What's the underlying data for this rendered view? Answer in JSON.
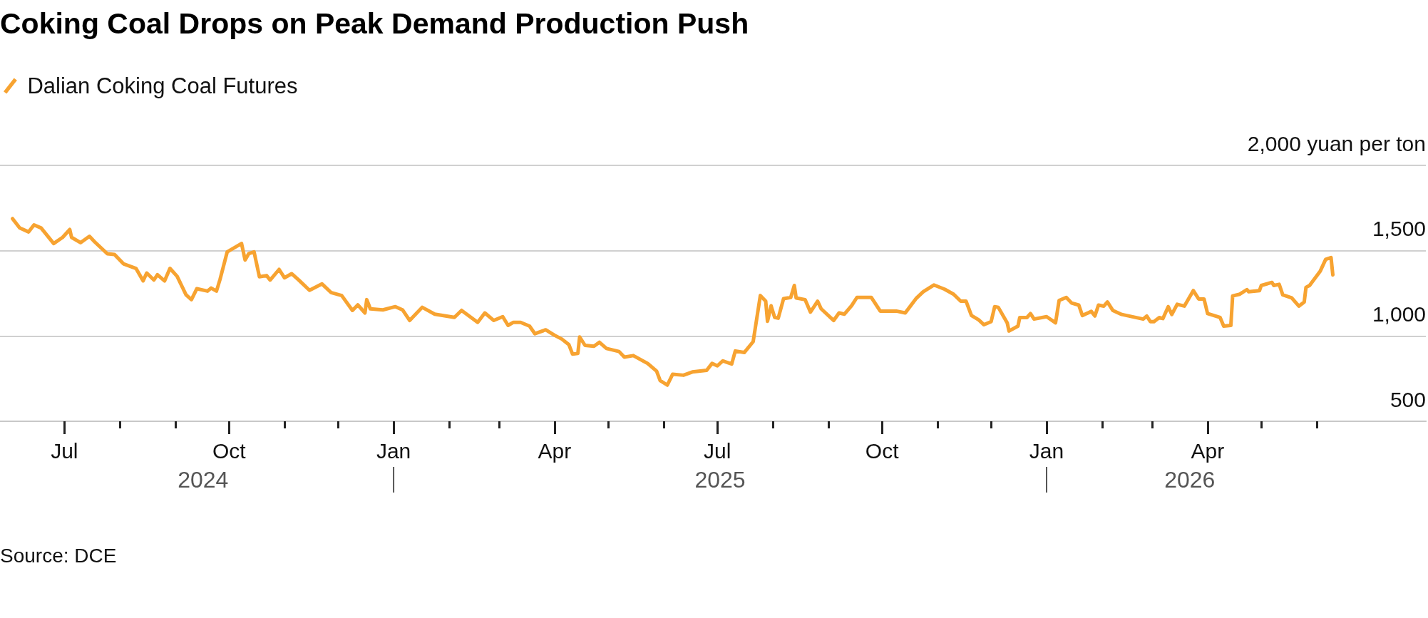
{
  "chart_data": {
    "type": "line",
    "title": "Coking Coal Drops on Peak Demand Production Push",
    "annotations": [
      "Source: DCE",
      "2024",
      "2025",
      "2026"
    ],
    "xlim": [
      "2024-05-26",
      "2026-08-01"
    ],
    "xticks": [
      {
        "value": "2024-07-01",
        "label": "Jul"
      },
      {
        "value": "2024-08-01",
        "label": null
      },
      {
        "value": "2024-09-01",
        "label": null
      },
      {
        "value": "2024-10-01",
        "label": "Oct"
      },
      {
        "value": "2024-11-01",
        "label": null
      },
      {
        "value": "2024-12-01",
        "label": null
      },
      {
        "value": "2025-01-01",
        "label": "Jan"
      },
      {
        "value": "2025-02-01",
        "label": null
      },
      {
        "value": "2025-03-01",
        "label": null
      },
      {
        "value": "2025-04-01",
        "label": "Apr"
      },
      {
        "value": "2025-05-01",
        "label": null
      },
      {
        "value": "2025-06-01",
        "label": null
      },
      {
        "value": "2025-07-01",
        "label": "Jul"
      },
      {
        "value": "2025-08-01",
        "label": null
      },
      {
        "value": "2025-09-01",
        "label": null
      },
      {
        "value": "2025-10-01",
        "label": "Oct"
      },
      {
        "value": "2025-11-01",
        "label": null
      },
      {
        "value": "2025-12-01",
        "label": null
      },
      {
        "value": "2026-01-01",
        "label": "Jan"
      },
      {
        "value": "2026-02-01",
        "label": null
      },
      {
        "value": "2026-03-01",
        "label": null
      },
      {
        "value": "2026-04-01",
        "label": "Apr"
      },
      {
        "value": "2026-05-01",
        "label": null
      },
      {
        "value": "2026-06-01",
        "label": null
      }
    ],
    "ylim": [
      500,
      2000
    ],
    "yticks": [
      500,
      {
        "value": 1000,
        "label": "1,000"
      },
      {
        "value": 1500,
        "label": "1,500"
      },
      {
        "value": 2000,
        "label": "2,000 yuan per ton"
      }
    ],
    "grid": "y",
    "legend": "top left",
    "marker": "none",
    "line_style": "solid",
    "series": [
      {
        "name": "Dalian Coking Coal Futures",
        "color": "#f7a331",
        "x": [
          "2024-06-02",
          "2024-06-06",
          "2024-06-11",
          "2024-06-14",
          "2024-06-18",
          "2024-06-25",
          "2024-06-30",
          "2024-07-04",
          "2024-07-05",
          "2024-07-10",
          "2024-07-15",
          "2024-07-18",
          "2024-07-25",
          "2024-07-29",
          "2024-08-03",
          "2024-08-10",
          "2024-08-14",
          "2024-08-16",
          "2024-08-20",
          "2024-08-22",
          "2024-08-26",
          "2024-08-29",
          "2024-09-02",
          "2024-09-07",
          "2024-09-10",
          "2024-09-13",
          "2024-09-19",
          "2024-09-21",
          "2024-09-24",
          "2024-09-26",
          "2024-09-30",
          "2024-10-08",
          "2024-10-10",
          "2024-10-12",
          "2024-10-15",
          "2024-10-18",
          "2024-10-22",
          "2024-10-24",
          "2024-10-29",
          "2024-11-01",
          "2024-11-05",
          "2024-11-09",
          "2024-11-15",
          "2024-11-22",
          "2024-11-27",
          "2024-12-03",
          "2024-12-09",
          "2024-12-12",
          "2024-12-16",
          "2024-12-17",
          "2024-12-19",
          "2024-12-26",
          "2025-01-02",
          "2025-01-06",
          "2025-01-10",
          "2025-01-17",
          "2025-01-24",
          "2025-02-04",
          "2025-02-08",
          "2025-02-17",
          "2025-02-21",
          "2025-02-26",
          "2025-03-03",
          "2025-03-06",
          "2025-03-09",
          "2025-03-13",
          "2025-03-18",
          "2025-03-21",
          "2025-03-27",
          "2025-04-01",
          "2025-04-05",
          "2025-04-09",
          "2025-04-11",
          "2025-04-14",
          "2025-04-15",
          "2025-04-18",
          "2025-04-23",
          "2025-04-26",
          "2025-04-30",
          "2025-05-07",
          "2025-05-10",
          "2025-05-15",
          "2025-05-23",
          "2025-05-28",
          "2025-05-30",
          "2025-06-03",
          "2025-06-06",
          "2025-06-12",
          "2025-06-17",
          "2025-06-25",
          "2025-06-28",
          "2025-07-01",
          "2025-07-04",
          "2025-07-09",
          "2025-07-11",
          "2025-07-16",
          "2025-07-21",
          "2025-07-25",
          "2025-07-28",
          "2025-07-29",
          "2025-07-31",
          "2025-08-02",
          "2025-08-04",
          "2025-08-07",
          "2025-08-11",
          "2025-08-13",
          "2025-08-14",
          "2025-08-19",
          "2025-08-22",
          "2025-08-26",
          "2025-08-28",
          "2025-09-04",
          "2025-09-07",
          "2025-09-10",
          "2025-09-14",
          "2025-09-17",
          "2025-09-25",
          "2025-09-30",
          "2025-10-09",
          "2025-10-14",
          "2025-10-20",
          "2025-10-24",
          "2025-10-30",
          "2025-11-05",
          "2025-11-10",
          "2025-11-14",
          "2025-11-17",
          "2025-11-20",
          "2025-11-24",
          "2025-11-27",
          "2025-12-01",
          "2025-12-03",
          "2025-12-05",
          "2025-12-10",
          "2025-12-11",
          "2025-12-16",
          "2025-12-17",
          "2025-12-21",
          "2025-12-23",
          "2025-12-25",
          "2026-01-01",
          "2026-01-06",
          "2026-01-08",
          "2026-01-12",
          "2026-01-15",
          "2026-01-19",
          "2026-01-21",
          "2026-01-26",
          "2026-01-28",
          "2026-01-30",
          "2026-02-02",
          "2026-02-04",
          "2026-02-07",
          "2026-02-12",
          "2026-02-24",
          "2026-02-26",
          "2026-02-28",
          "2026-03-02",
          "2026-03-05",
          "2026-03-07",
          "2026-03-10",
          "2026-03-12",
          "2026-03-15",
          "2026-03-19",
          "2026-03-24",
          "2026-03-27",
          "2026-03-30",
          "2026-04-01",
          "2026-04-08",
          "2026-04-10",
          "2026-04-14",
          "2026-04-15",
          "2026-04-19",
          "2026-04-23",
          "2026-04-24",
          "2026-04-30",
          "2026-05-01",
          "2026-05-07",
          "2026-05-08",
          "2026-05-11",
          "2026-05-13",
          "2026-05-18",
          "2026-05-22",
          "2026-05-25",
          "2026-05-26",
          "2026-05-28",
          "2026-06-03",
          "2026-06-06",
          "2026-06-09",
          "2026-06-10"
        ],
        "values": [
          1688,
          1633,
          1610,
          1651,
          1633,
          1542,
          1578,
          1624,
          1578,
          1547,
          1584,
          1551,
          1482,
          1478,
          1423,
          1396,
          1323,
          1369,
          1328,
          1359,
          1323,
          1396,
          1350,
          1241,
          1213,
          1277,
          1263,
          1281,
          1263,
          1332,
          1493,
          1542,
          1445,
          1482,
          1493,
          1347,
          1354,
          1328,
          1390,
          1341,
          1365,
          1328,
          1268,
          1305,
          1255,
          1237,
          1150,
          1182,
          1135,
          1213,
          1159,
          1153,
          1172,
          1153,
          1091,
          1168,
          1128,
          1109,
          1150,
          1080,
          1135,
          1091,
          1113,
          1062,
          1080,
          1080,
          1058,
          1013,
          1036,
          1004,
          982,
          949,
          894,
          898,
          994,
          945,
          940,
          963,
          927,
          909,
          876,
          885,
          839,
          794,
          739,
          712,
          776,
          770,
          789,
          799,
          839,
          825,
          854,
          836,
          912,
          903,
          967,
          1237,
          1204,
          1086,
          1177,
          1109,
          1104,
          1219,
          1226,
          1296,
          1223,
          1213,
          1140,
          1204,
          1159,
          1091,
          1135,
          1128,
          1177,
          1226,
          1226,
          1146,
          1146,
          1135,
          1219,
          1259,
          1299,
          1274,
          1245,
          1204,
          1204,
          1120,
          1095,
          1066,
          1084,
          1172,
          1168,
          1077,
          1029,
          1058,
          1108,
          1108,
          1131,
          1099,
          1113,
          1077,
          1208,
          1226,
          1193,
          1181,
          1120,
          1144,
          1117,
          1181,
          1175,
          1199,
          1150,
          1126,
          1099,
          1117,
          1084,
          1084,
          1108,
          1102,
          1172,
          1126,
          1186,
          1175,
          1266,
          1217,
          1217,
          1131,
          1108,
          1058,
          1062,
          1235,
          1245,
          1272,
          1259,
          1266,
          1296,
          1314,
          1296,
          1303,
          1241,
          1223,
          1175,
          1199,
          1285,
          1296,
          1381,
          1449,
          1460,
          1358
        ]
      }
    ]
  }
}
